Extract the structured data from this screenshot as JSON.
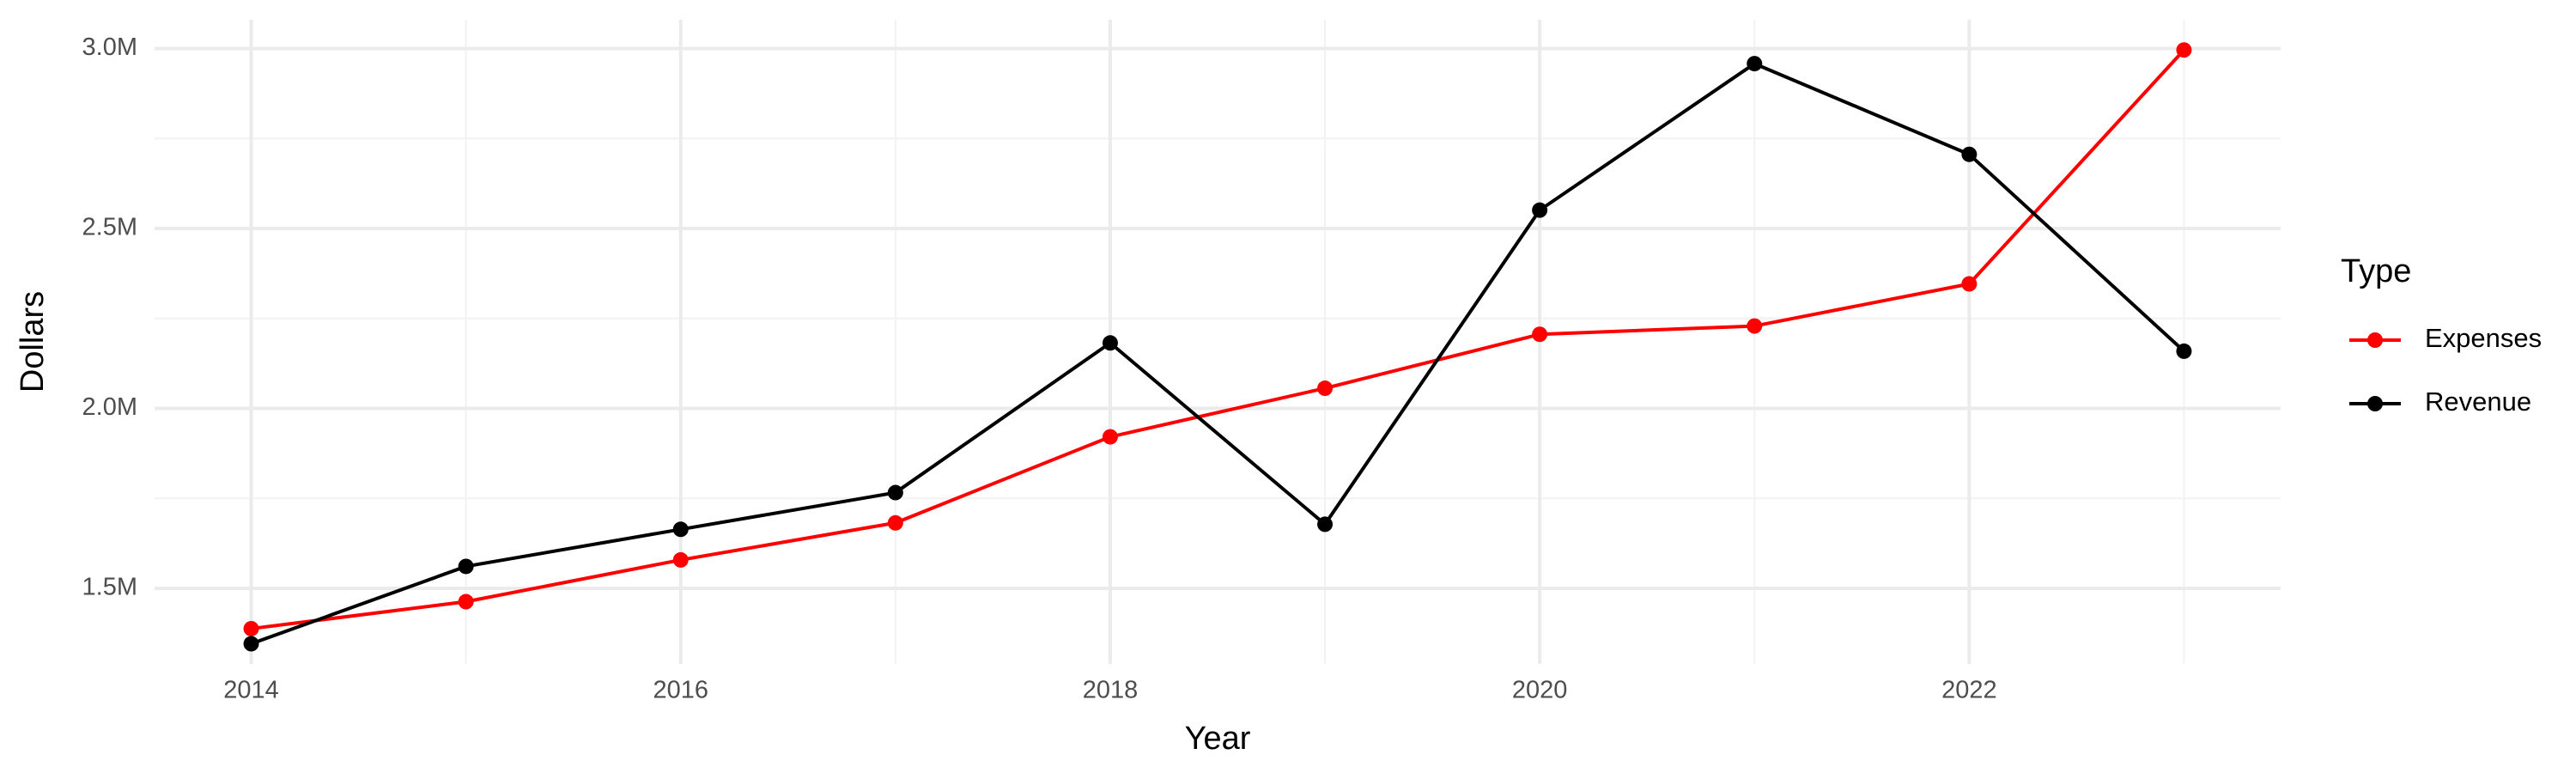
{
  "chart_data": {
    "type": "line",
    "x_label": "Year",
    "y_label": "Dollars",
    "x": [
      2014,
      2015,
      2016,
      2017,
      2018,
      2019,
      2020,
      2021,
      2022,
      2023
    ],
    "series": [
      {
        "name": "Expenses",
        "color": "#ff0000",
        "values": [
          1388000,
          1463000,
          1579000,
          1682000,
          1921000,
          2056000,
          2206000,
          2229000,
          2346000,
          2996000
        ]
      },
      {
        "name": "Revenue",
        "color": "#000000",
        "values": [
          1346000,
          1561000,
          1664000,
          1766000,
          2182000,
          1678000,
          2551000,
          2958000,
          2706000,
          2159000
        ]
      }
    ],
    "xlim": [
      2013.55,
      2023.45
    ],
    "xticks": [
      2014,
      2016,
      2018,
      2020,
      2022
    ],
    "ylim": [
      1290000,
      3080000
    ],
    "yticks": [
      {
        "value": 1500000,
        "label": "1.5M"
      },
      {
        "value": 2000000,
        "label": "2.0M"
      },
      {
        "value": 2500000,
        "label": "2.5M"
      },
      {
        "value": 3000000,
        "label": "3.0M"
      }
    ],
    "legend_title": "Type",
    "legend_position": "right",
    "grid": true
  }
}
